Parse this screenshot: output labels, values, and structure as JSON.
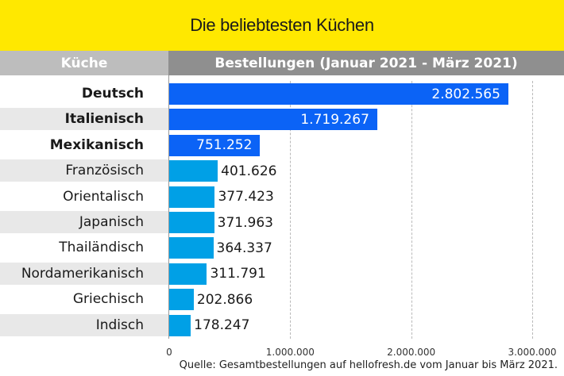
{
  "title": "Die beliebtesten Küchen",
  "header": {
    "category_col": "Küche",
    "value_col": "Bestellungen (Januar 2021 - März 2021)"
  },
  "source": "Quelle: Gesamtbestellungen auf hellofresh.de vom Januar bis März 2021.",
  "colors": {
    "title_bg": "#ffe800",
    "header_category_bg": "#bdbdbd",
    "header_value_bg": "#8f8f8f",
    "top3_bar": "#0b63f6",
    "other_bar": "#00a0e6",
    "row_stripe": "#e8e8e8"
  },
  "chart_data": {
    "type": "bar",
    "orientation": "horizontal",
    "title": "Die beliebtesten Küchen",
    "xlabel": "Bestellungen (Januar 2021 - März 2021)",
    "ylabel": "Küche",
    "categories": [
      "Deutsch",
      "Italienisch",
      "Mexikanisch",
      "Französisch",
      "Orientalisch",
      "Japanisch",
      "Thailändisch",
      "Nordamerikanisch",
      "Griechisch",
      "Indisch"
    ],
    "values": [
      2802565,
      1719267,
      751252,
      401626,
      377423,
      371963,
      364337,
      311791,
      202866,
      178247
    ],
    "value_labels": [
      "2.802.565",
      "1.719.267",
      "751.252",
      "401.626",
      "377.423",
      "371.963",
      "364.337",
      "311.791",
      "202.866",
      "178.247"
    ],
    "highlighted_top": 3,
    "xlim": [
      0,
      3000000
    ],
    "x_ticks": [
      0,
      1000000,
      2000000,
      3000000
    ],
    "x_tick_labels": [
      "0",
      "1.000.000",
      "2.000.000",
      "3.000.000"
    ],
    "grid": "vertical dashed",
    "legend": "none"
  }
}
